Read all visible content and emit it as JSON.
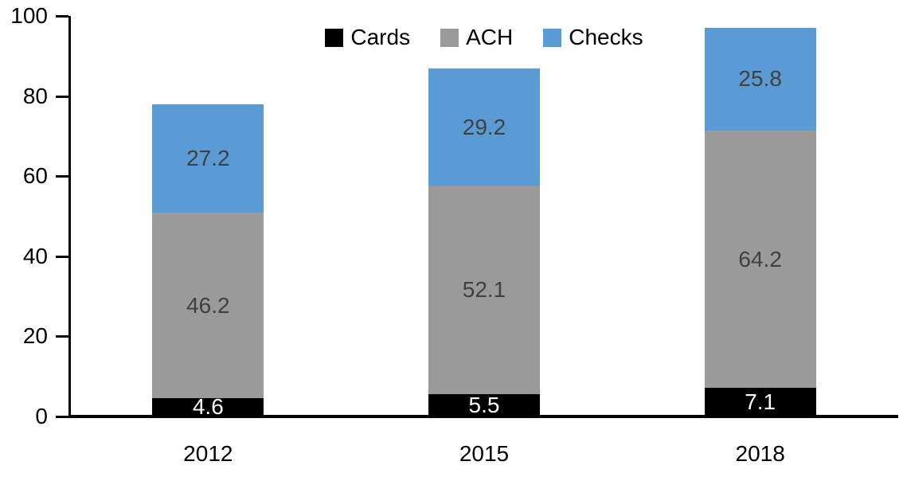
{
  "chart_data": {
    "type": "bar",
    "stacked": true,
    "title": "",
    "xlabel": "",
    "ylabel": "",
    "categories": [
      "2012",
      "2015",
      "2018"
    ],
    "series": [
      {
        "name": "Cards",
        "color": "#000000",
        "label_color": "#FFFFFF",
        "values": [
          4.6,
          5.5,
          7.1
        ]
      },
      {
        "name": "ACH",
        "color": "#9A9A9A",
        "label_color": "#404040",
        "values": [
          46.2,
          52.1,
          64.2
        ]
      },
      {
        "name": "Checks",
        "color": "#5B9BD5",
        "label_color": "#404040",
        "values": [
          27.2,
          29.2,
          25.8
        ]
      }
    ],
    "totals": [
      78.0,
      86.8,
      97.1
    ],
    "y_ticks": [
      0,
      20,
      40,
      60,
      80,
      100
    ],
    "ylim": [
      0,
      100
    ],
    "grid": false,
    "legend_position": "top",
    "axis_color": "#000000",
    "background_color": "#FFFFFF"
  }
}
